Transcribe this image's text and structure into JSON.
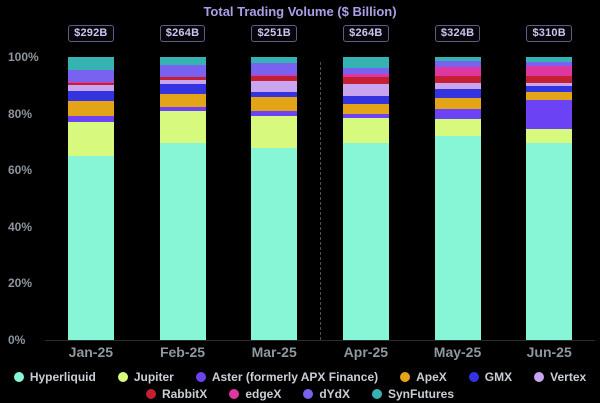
{
  "title": "Total Trading Volume ($ Billion)",
  "y_axis": {
    "tick_labels": [
      "100%",
      "80%",
      "60%",
      "40%",
      "20%",
      "0%"
    ]
  },
  "chart_data": {
    "type": "bar",
    "stacked": true,
    "normalized": "percent",
    "title": "Total Trading Volume ($ Billion)",
    "categories": [
      "Jan-25",
      "Feb-25",
      "Mar-25",
      "Apr-25",
      "May-25",
      "Jun-25"
    ],
    "total_labels": [
      "$292B",
      "$264B",
      "$251B",
      "$264B",
      "$324B",
      "$310B"
    ],
    "ylim": [
      0,
      100
    ],
    "legend_position": "bottom",
    "grid": false,
    "annotations": {
      "dashed_divider_between": [
        "Mar-25",
        "Apr-25"
      ]
    },
    "series": [
      {
        "name": "Hyperliquid",
        "color": "#86f6d6",
        "values": [
          65.0,
          69.5,
          68.0,
          69.5,
          72.0,
          69.5
        ]
      },
      {
        "name": "Jupiter",
        "color": "#d6f97e",
        "values": [
          12.0,
          11.5,
          11.0,
          9.0,
          6.2,
          5.1
        ]
      },
      {
        "name": "Aster (formerly APX Finance)",
        "color": "#6c42f5",
        "values": [
          2.0,
          1.5,
          1.8,
          1.4,
          3.6,
          10.1
        ]
      },
      {
        "name": "ApeX",
        "color": "#e3a418",
        "values": [
          5.5,
          4.5,
          5.0,
          3.6,
          3.6,
          2.9
        ]
      },
      {
        "name": "GMX",
        "color": "#3433e0",
        "values": [
          3.5,
          3.5,
          1.8,
          2.9,
          3.3,
          2.2
        ]
      },
      {
        "name": "Vertex",
        "color": "#c9a4ef",
        "values": [
          2.0,
          1.3,
          4.0,
          4.0,
          2.1,
          1.1
        ]
      },
      {
        "name": "RabbitX",
        "color": "#c41f33",
        "values": [
          1.0,
          1.0,
          1.8,
          2.5,
          2.5,
          2.5
        ]
      },
      {
        "name": "edgeX",
        "color": "#de37a0",
        "values": [
          0.3,
          0.2,
          0.3,
          1.1,
          3.3,
          3.3
        ]
      },
      {
        "name": "dYdX",
        "color": "#7a62f0",
        "values": [
          4.2,
          4.2,
          4.3,
          2.1,
          2.1,
          1.4
        ]
      },
      {
        "name": "SynFutures",
        "color": "#35b3b2",
        "values": [
          4.5,
          2.8,
          2.0,
          3.9,
          1.3,
          1.9
        ]
      }
    ],
    "legend_rows": [
      [
        0,
        1,
        2,
        3,
        4,
        5
      ],
      [
        6,
        7,
        8,
        9
      ]
    ]
  }
}
